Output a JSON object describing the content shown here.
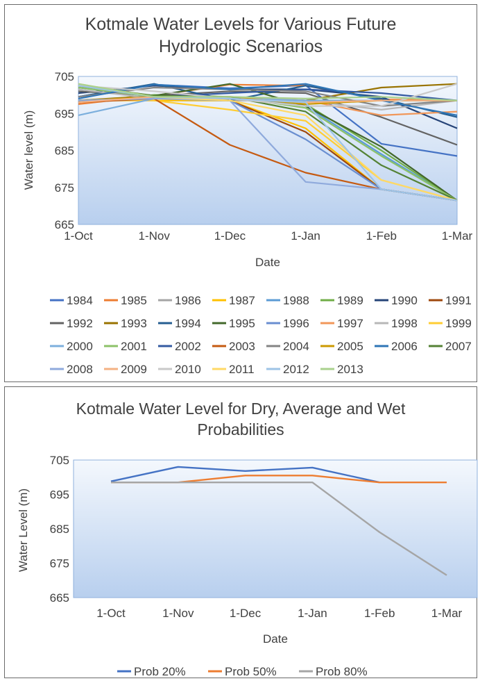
{
  "chart_data": [
    {
      "type": "line",
      "title_line1": "Kotmale Water Levels for Various Future",
      "title_line2": "Hydrologic Scenarios",
      "xlabel": "Date",
      "ylabel": "Water level (m)",
      "categories": [
        "1-Oct",
        "1-Nov",
        "1-Dec",
        "1-Jan",
        "1-Feb",
        "1-Mar"
      ],
      "y_ticks": [
        "705",
        "695",
        "685",
        "675",
        "665"
      ],
      "ylim": [
        665,
        705
      ],
      "grid": false,
      "legend_position": "bottom",
      "series": [
        {
          "name": "1984",
          "color": "#4472c4",
          "values": [
            699.5,
            702.8,
            701.8,
            702.6,
            686.8,
            683.5
          ]
        },
        {
          "name": "1985",
          "color": "#ed7d31",
          "values": [
            697.5,
            699.8,
            702.8,
            702.5,
            698.8,
            698.5
          ]
        },
        {
          "name": "1986",
          "color": "#a5a5a5",
          "values": [
            698.5,
            698.5,
            698.5,
            698.5,
            698.5,
            698.5
          ]
        },
        {
          "name": "1987",
          "color": "#ffc000",
          "values": [
            702.5,
            698.5,
            698.5,
            691.0,
            674.5,
            671.5
          ]
        },
        {
          "name": "1988",
          "color": "#5b9bd5",
          "values": [
            702.5,
            699.5,
            699.5,
            697.0,
            684.0,
            671.5
          ]
        },
        {
          "name": "1989",
          "color": "#70ad47",
          "values": [
            698.0,
            700.0,
            699.5,
            697.5,
            685.0,
            671.5
          ]
        },
        {
          "name": "1990",
          "color": "#264478",
          "values": [
            700.5,
            702.5,
            701.5,
            701.5,
            699.5,
            691.0
          ]
        },
        {
          "name": "1991",
          "color": "#9e480e",
          "values": [
            698.0,
            699.5,
            698.5,
            690.0,
            674.5,
            671.5
          ]
        },
        {
          "name": "1992",
          "color": "#636363",
          "values": [
            701.0,
            699.8,
            701.0,
            700.5,
            694.0,
            686.5
          ]
        },
        {
          "name": "1993",
          "color": "#997300",
          "values": [
            698.5,
            699.8,
            699.5,
            698.5,
            702.0,
            703.0
          ]
        },
        {
          "name": "1994",
          "color": "#255e91",
          "values": [
            699.5,
            703.0,
            698.5,
            702.5,
            699.0,
            694.0
          ]
        },
        {
          "name": "1995",
          "color": "#43682b",
          "values": [
            702.0,
            699.8,
            703.0,
            697.0,
            686.0,
            671.5
          ]
        },
        {
          "name": "1996",
          "color": "#698ed0",
          "values": [
            698.0,
            699.5,
            698.5,
            688.0,
            674.5,
            671.5
          ]
        },
        {
          "name": "1997",
          "color": "#f1975a",
          "values": [
            698.5,
            699.5,
            699.5,
            698.5,
            694.5,
            695.5
          ]
        },
        {
          "name": "1998",
          "color": "#b7b7b7",
          "values": [
            701.5,
            699.0,
            699.5,
            698.5,
            696.0,
            698.5
          ]
        },
        {
          "name": "1999",
          "color": "#ffcd33",
          "values": [
            698.5,
            698.5,
            696.0,
            693.0,
            677.0,
            671.5
          ]
        },
        {
          "name": "2000",
          "color": "#7cafdd",
          "values": [
            694.5,
            699.0,
            699.0,
            698.5,
            698.5,
            698.5
          ]
        },
        {
          "name": "2001",
          "color": "#8cc168",
          "values": [
            702.0,
            699.5,
            699.5,
            696.5,
            683.5,
            671.5
          ]
        },
        {
          "name": "2002",
          "color": "#335aa1",
          "values": [
            698.5,
            699.5,
            700.5,
            701.5,
            700.5,
            698.5
          ]
        },
        {
          "name": "2003",
          "color": "#c55a11",
          "values": [
            698.0,
            699.0,
            686.5,
            679.0,
            674.5,
            671.5
          ]
        },
        {
          "name": "2004",
          "color": "#848484",
          "values": [
            699.5,
            702.0,
            701.5,
            701.0,
            697.0,
            698.5
          ]
        },
        {
          "name": "2005",
          "color": "#cc9a00",
          "values": [
            698.5,
            699.5,
            699.5,
            697.5,
            698.5,
            698.5
          ]
        },
        {
          "name": "2006",
          "color": "#2e75b6",
          "values": [
            699.0,
            702.8,
            701.5,
            703.0,
            698.5,
            694.5
          ]
        },
        {
          "name": "2007",
          "color": "#548235",
          "values": [
            702.5,
            699.8,
            699.5,
            695.5,
            681.0,
            671.5
          ]
        },
        {
          "name": "2008",
          "color": "#8faadc",
          "values": [
            698.5,
            699.0,
            698.5,
            676.5,
            674.5,
            671.5
          ]
        },
        {
          "name": "2009",
          "color": "#f4b183",
          "values": [
            698.0,
            699.5,
            699.0,
            698.0,
            698.5,
            698.5
          ]
        },
        {
          "name": "2010",
          "color": "#c9c9c9",
          "values": [
            702.5,
            701.0,
            699.0,
            697.0,
            697.0,
            703.0
          ]
        },
        {
          "name": "2011",
          "color": "#ffd966",
          "values": [
            703.0,
            699.5,
            698.5,
            694.5,
            677.0,
            671.5
          ]
        },
        {
          "name": "2012",
          "color": "#9dc3e6",
          "values": [
            702.5,
            699.5,
            699.0,
            698.0,
            674.5,
            671.5
          ]
        },
        {
          "name": "2013",
          "color": "#a9d18e",
          "values": [
            703.0,
            699.5,
            699.5,
            699.0,
            699.5,
            698.5
          ]
        }
      ]
    },
    {
      "type": "line",
      "title_line1": "Kotmale Water Level for Dry, Average and Wet",
      "title_line2": "Probabilities",
      "xlabel": "Date",
      "ylabel": "Water Level (m)",
      "categories": [
        "1-Oct",
        "1-Nov",
        "1-Dec",
        "1-Jan",
        "1-Feb",
        "1-Mar"
      ],
      "y_ticks": [
        "705",
        "695",
        "685",
        "675",
        "665"
      ],
      "ylim": [
        665,
        705
      ],
      "grid": false,
      "legend_position": "bottom",
      "series": [
        {
          "name": "Prob 20%",
          "color": "#4472c4",
          "values": [
            698.8,
            703.0,
            701.8,
            702.8,
            698.5,
            null
          ]
        },
        {
          "name": "Prob 50%",
          "color": "#ed7d31",
          "values": [
            698.5,
            698.5,
            700.5,
            700.5,
            698.5,
            698.5
          ]
        },
        {
          "name": "Prob 80%",
          "color": "#a5a5a5",
          "values": [
            698.5,
            698.5,
            698.5,
            698.5,
            684.0,
            671.5
          ]
        }
      ]
    }
  ]
}
